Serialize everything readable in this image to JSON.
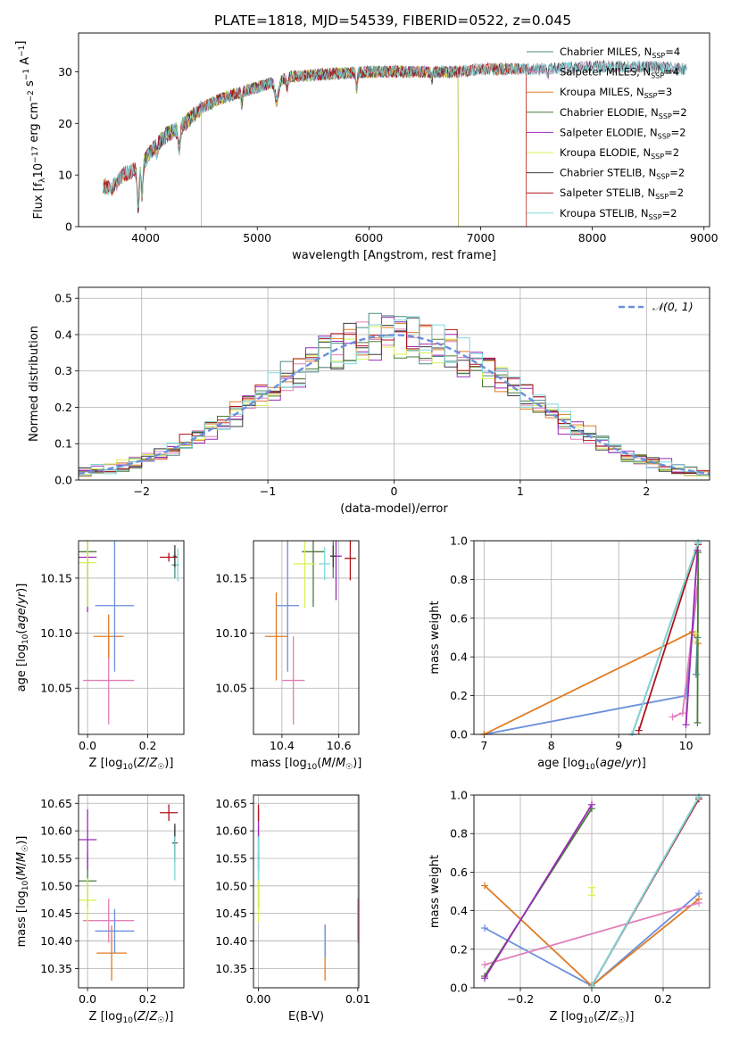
{
  "figure_title": "PLATE=1818, MJD=54539, FIBERID=0522, z=0.045",
  "colors": {
    "chabrier_miles": "#4c8c82",
    "salpeter_miles": "#e27fb8",
    "kroupa_miles": "#e07b23",
    "chabrier_elodie": "#4b7b3c",
    "salpeter_elodie": "#9b2ab8",
    "kroupa_elodie": "#d8f052",
    "chabrier_stelib": "#3c3c3c",
    "salpeter_stelib": "#b0121b",
    "kroupa_stelib": "#7fd8dc",
    "normal": "#6a8fdc",
    "extra_blue": "#6a8fdc",
    "grid": "#b0b0b0"
  },
  "chart_data": [
    {
      "id": "spectrum",
      "type": "line",
      "xlabel": "wavelength [Angstrom, rest frame]",
      "ylabel": "Flux [f_λ 10^-17 erg cm^-2 s^-1 A^-1]",
      "xlim": [
        3400,
        9050
      ],
      "ylim": [
        0,
        37.5
      ],
      "xticks": [
        4000,
        5000,
        6000,
        7000,
        8000,
        9000
      ],
      "yticks": [
        0,
        10,
        20,
        30
      ],
      "grid": false,
      "legend_position": "top-right",
      "series": [
        {
          "name": "Chabrier MILES, N_SSP=4",
          "key": "chabrier_miles"
        },
        {
          "name": "Salpeter MILES, N_SSP=4",
          "key": "salpeter_miles"
        },
        {
          "name": "Kroupa MILES, N_SSP=3",
          "key": "kroupa_miles"
        },
        {
          "name": "Chabrier ELODIE, N_SSP=2",
          "key": "chabrier_elodie"
        },
        {
          "name": "Salpeter ELODIE, N_SSP=2",
          "key": "salpeter_elodie"
        },
        {
          "name": "Kroupa ELODIE, N_SSP=2",
          "key": "kroupa_elodie"
        },
        {
          "name": "Chabrier STELIB, N_SSP=2",
          "key": "chabrier_stelib"
        },
        {
          "name": "Salpeter STELIB, N_SSP=2",
          "key": "salpeter_stelib"
        },
        {
          "name": "Kroupa STELIB, N_SSP=2",
          "key": "kroupa_stelib"
        }
      ],
      "continuum": {
        "x": [
          3600,
          3700,
          3800,
          3900,
          4000,
          4100,
          4200,
          4300,
          4400,
          4500,
          4700,
          5000,
          5300,
          5600,
          6000,
          6400,
          6800,
          7000,
          7200,
          7500,
          8000,
          8500,
          8850
        ],
        "y": [
          8,
          7.5,
          10,
          11,
          13,
          16,
          18,
          19,
          21,
          23,
          25,
          27,
          29,
          29.5,
          30,
          30,
          30,
          30.5,
          30.5,
          30.5,
          31,
          31,
          30.5
        ]
      },
      "segments": [
        {
          "key": "chabrier_miles",
          "x0": 3620,
          "x1": 8850
        },
        {
          "key": "salpeter_miles",
          "x0": 3620,
          "x1": 8850
        },
        {
          "key": "kroupa_miles",
          "x0": 3620,
          "x1": 7410
        },
        {
          "key": "chabrier_elodie",
          "x0": 3900,
          "x1": 6800
        },
        {
          "key": "salpeter_elodie",
          "x0": 3900,
          "x1": 6800
        },
        {
          "key": "kroupa_elodie",
          "x0": 3900,
          "x1": 6800
        },
        {
          "key": "chabrier_stelib",
          "x0": 3620,
          "x1": 8850
        },
        {
          "key": "salpeter_stelib",
          "x0": 3620,
          "x1": 7410
        },
        {
          "key": "kroupa_stelib",
          "x0": 3620,
          "x1": 8850
        }
      ]
    },
    {
      "id": "residual_hist",
      "type": "histogram",
      "xlabel": "(data-model)/error",
      "ylabel": "Normed distribution",
      "xlim": [
        -2.5,
        2.5
      ],
      "ylim": [
        0,
        0.53
      ],
      "xticks": [
        -2,
        -1,
        0,
        1,
        2
      ],
      "yticks": [
        0.0,
        0.1,
        0.2,
        0.3,
        0.4,
        0.5
      ],
      "grid": true,
      "legend_position": "top-right",
      "legend_label": "𝒩(0, 1)",
      "bin_width": 0.1,
      "bin_start": -2.5
    },
    {
      "id": "age_vs_Z",
      "type": "errorbar",
      "xlabel": "Z [log10(Z/Z☉)]",
      "ylabel": "age [log10(age/yr)]",
      "xlim": [
        -0.03,
        0.32
      ],
      "ylim": [
        10.008,
        10.184
      ],
      "xticks": [
        0.0,
        0.2
      ],
      "yticks": [
        10.05,
        10.1,
        10.15
      ],
      "grid": true,
      "points": [
        {
          "key": "chabrier_miles",
          "x": 0.29,
          "y": 10.162,
          "xerr": 0.01,
          "yerr": 0.012
        },
        {
          "key": "salpeter_miles",
          "x": 0.07,
          "y": 10.057,
          "xerr": 0.085,
          "yerr": 0.04
        },
        {
          "key": "kroupa_miles",
          "x": 0.07,
          "y": 10.097,
          "xerr": 0.05,
          "yerr": 0.02
        },
        {
          "key": "chabrier_elodie",
          "x": 0.0,
          "y": 10.174,
          "xerr": 0.03,
          "yerr": 0.05
        },
        {
          "key": "salpeter_elodie",
          "x": 0.0,
          "y": 10.169,
          "xerr": 0.03,
          "yerr": 0.05
        },
        {
          "key": "kroupa_elodie",
          "x": 0.0,
          "y": 10.164,
          "xerr": 0.03,
          "yerr": 0.04
        },
        {
          "key": "chabrier_stelib",
          "x": 0.29,
          "y": 10.17,
          "xerr": 0.005,
          "yerr": 0.01
        },
        {
          "key": "salpeter_stelib",
          "x": 0.27,
          "y": 10.169,
          "xerr": 0.03,
          "yerr": 0.004
        },
        {
          "key": "kroupa_stelib",
          "x": 0.3,
          "y": 10.162,
          "xerr": 0.005,
          "yerr": 0.015
        },
        {
          "key": "extra_blue",
          "x": 0.09,
          "y": 10.125,
          "xerr": 0.065,
          "yerr": 0.06
        }
      ]
    },
    {
      "id": "age_vs_mass",
      "type": "errorbar",
      "xlabel": "mass [log10(M/M☉)]",
      "ylabel": "",
      "xlim": [
        10.3,
        10.67
      ],
      "ylim": [
        10.008,
        10.184
      ],
      "xticks": [
        10.4,
        10.6
      ],
      "yticks": [
        10.05,
        10.1,
        10.15
      ],
      "grid": true,
      "points": [
        {
          "key": "chabrier_miles",
          "x": 10.58,
          "y": 10.17,
          "xerr": 0.01,
          "yerr": 0.02
        },
        {
          "key": "salpeter_miles",
          "x": 10.44,
          "y": 10.057,
          "xerr": 0.04,
          "yerr": 0.04
        },
        {
          "key": "kroupa_miles",
          "x": 10.38,
          "y": 10.097,
          "xerr": 0.04,
          "yerr": 0.04
        },
        {
          "key": "chabrier_elodie",
          "x": 10.51,
          "y": 10.174,
          "xerr": 0.04,
          "yerr": 0.05
        },
        {
          "key": "salpeter_elodie",
          "x": 10.59,
          "y": 10.17,
          "xerr": 0.02,
          "yerr": 0.04
        },
        {
          "key": "kroupa_elodie",
          "x": 10.48,
          "y": 10.163,
          "xerr": 0.04,
          "yerr": 0.04
        },
        {
          "key": "chabrier_stelib",
          "x": 10.58,
          "y": 10.17,
          "xerr": 0.01,
          "yerr": 0.01
        },
        {
          "key": "salpeter_stelib",
          "x": 10.64,
          "y": 10.168,
          "xerr": 0.02,
          "yerr": 0.02
        },
        {
          "key": "kroupa_stelib",
          "x": 10.55,
          "y": 10.163,
          "xerr": 0.02,
          "yerr": 0.015
        },
        {
          "key": "extra_blue",
          "x": 10.42,
          "y": 10.125,
          "xerr": 0.04,
          "yerr": 0.06
        }
      ]
    },
    {
      "id": "weight_vs_age",
      "type": "line",
      "xlabel": "age [log10(age/yr)]",
      "ylabel": "mass weight",
      "xlim": [
        6.85,
        10.35
      ],
      "ylim": [
        0,
        1
      ],
      "xticks": [
        7,
        8,
        9,
        10
      ],
      "yticks": [
        0.0,
        0.2,
        0.4,
        0.6,
        0.8,
        1.0
      ],
      "grid": true,
      "series": [
        {
          "key": "extra_blue",
          "x": [
            7.0,
            10.0,
            10.18
          ],
          "y": [
            0.0,
            0.2,
            0.8
          ]
        },
        {
          "key": "kroupa_miles",
          "x": [
            7.0,
            10.1,
            10.18
          ],
          "y": [
            0.0,
            0.53,
            0.47
          ]
        },
        {
          "key": "salpeter_miles",
          "x": [
            9.8,
            9.95,
            10.18
          ],
          "y": [
            0.09,
            0.11,
            0.8
          ]
        },
        {
          "key": "salpeter_stelib",
          "x": [
            9.3,
            10.18
          ],
          "y": [
            0.02,
            0.98
          ]
        },
        {
          "key": "chabrier_stelib",
          "x": [
            9.2,
            10.18
          ],
          "y": [
            0.0,
            0.99
          ]
        },
        {
          "key": "kroupa_stelib",
          "x": [
            9.2,
            10.18
          ],
          "y": [
            0.0,
            0.99
          ]
        },
        {
          "key": "chabrier_elodie",
          "x": [
            10.17,
            10.18
          ],
          "y": [
            0.06,
            0.94
          ]
        },
        {
          "key": "salpeter_elodie",
          "x": [
            10.0,
            10.17
          ],
          "y": [
            0.05,
            0.95
          ]
        },
        {
          "key": "kroupa_elodie",
          "x": [
            10.15,
            10.15
          ],
          "y": [
            0.48,
            0.52
          ]
        },
        {
          "key": "chabrier_miles",
          "x": [
            10.15,
            10.17
          ],
          "y": [
            0.31,
            0.5
          ]
        }
      ]
    },
    {
      "id": "mass_vs_Z",
      "type": "errorbar",
      "xlabel": "Z [log10(Z/Z☉)]",
      "ylabel": "mass [log10(M/M☉)]",
      "xlim": [
        -0.03,
        0.32
      ],
      "ylim": [
        10.315,
        10.665
      ],
      "xticks": [
        0.0,
        0.2
      ],
      "yticks": [
        10.35,
        10.4,
        10.45,
        10.5,
        10.55,
        10.6,
        10.65
      ],
      "grid": true,
      "points": [
        {
          "key": "chabrier_miles",
          "x": 0.29,
          "y": 10.578,
          "xerr": 0.01,
          "yerr": 0.03
        },
        {
          "key": "salpeter_miles",
          "x": 0.07,
          "y": 10.437,
          "xerr": 0.085,
          "yerr": 0.04
        },
        {
          "key": "kroupa_miles",
          "x": 0.08,
          "y": 10.378,
          "xerr": 0.05,
          "yerr": 0.05
        },
        {
          "key": "chabrier_elodie",
          "x": 0.0,
          "y": 10.509,
          "xerr": 0.03,
          "yerr": 0.05
        },
        {
          "key": "salpeter_elodie",
          "x": 0.0,
          "y": 10.584,
          "xerr": 0.03,
          "yerr": 0.055
        },
        {
          "key": "kroupa_elodie",
          "x": 0.0,
          "y": 10.474,
          "xerr": 0.03,
          "yerr": 0.04
        },
        {
          "key": "chabrier_stelib",
          "x": 0.29,
          "y": 10.578,
          "xerr": 0.005,
          "yerr": 0.035
        },
        {
          "key": "salpeter_stelib",
          "x": 0.27,
          "y": 10.633,
          "xerr": 0.03,
          "yerr": 0.015
        },
        {
          "key": "kroupa_stelib",
          "x": 0.29,
          "y": 10.55,
          "xerr": 0.005,
          "yerr": 0.04
        },
        {
          "key": "extra_blue",
          "x": 0.09,
          "y": 10.418,
          "xerr": 0.065,
          "yerr": 0.04
        }
      ]
    },
    {
      "id": "mass_vs_ebv",
      "type": "errorbar",
      "xlabel": "E(B-V)",
      "ylabel": "",
      "xlim": [
        -0.0005,
        0.0101
      ],
      "ylim": [
        10.315,
        10.665
      ],
      "xticks": [
        0.0,
        0.01
      ],
      "xticklabels": [
        "0.00",
        "0.01"
      ],
      "yticks": [
        10.35,
        10.4,
        10.45,
        10.5,
        10.55,
        10.6,
        10.65
      ],
      "grid": true,
      "points": [
        {
          "key": "chabrier_miles",
          "x": 0.0,
          "y": 10.578,
          "xerr": 0,
          "yerr": 0.03
        },
        {
          "key": "salpeter_miles",
          "x": 0.01,
          "y": 10.437,
          "xerr": 0,
          "yerr": 0.04
        },
        {
          "key": "kroupa_miles",
          "x": 0.0067,
          "y": 10.378,
          "xerr": 0,
          "yerr": 0.05
        },
        {
          "key": "chabrier_elodie",
          "x": 0.0,
          "y": 10.509,
          "xerr": 0,
          "yerr": 0.05
        },
        {
          "key": "salpeter_elodie",
          "x": 0.0,
          "y": 10.584,
          "xerr": 0,
          "yerr": 0.055
        },
        {
          "key": "kroupa_elodie",
          "x": 0.0,
          "y": 10.474,
          "xerr": 0,
          "yerr": 0.04
        },
        {
          "key": "salpeter_stelib",
          "x": 0.0,
          "y": 10.633,
          "xerr": 0,
          "yerr": 0.015
        },
        {
          "key": "kroupa_stelib",
          "x": 0.0,
          "y": 10.55,
          "xerr": 0,
          "yerr": 0.04
        },
        {
          "key": "extra_blue",
          "x": 0.0067,
          "y": 10.4,
          "xerr": 0,
          "yerr": 0.03
        }
      ]
    },
    {
      "id": "weight_vs_Z",
      "type": "line",
      "xlabel": "Z [log10(Z/Z☉)]",
      "ylabel": "mass weight",
      "xlim": [
        -0.33,
        0.33
      ],
      "ylim": [
        0,
        1
      ],
      "xticks": [
        -0.2,
        0.0,
        0.2
      ],
      "yticks": [
        0.0,
        0.2,
        0.4,
        0.6,
        0.8,
        1.0
      ],
      "grid": true,
      "series": [
        {
          "key": "extra_blue",
          "x": [
            -0.3,
            0.0,
            0.3
          ],
          "y": [
            0.31,
            0.01,
            0.49
          ]
        },
        {
          "key": "kroupa_miles",
          "x": [
            -0.3,
            0.0,
            0.3
          ],
          "y": [
            0.53,
            0.01,
            0.46
          ]
        },
        {
          "key": "salpeter_miles",
          "x": [
            -0.3,
            0.3
          ],
          "y": [
            0.12,
            0.44
          ]
        },
        {
          "key": "salpeter_stelib",
          "x": [
            0.0,
            0.3
          ],
          "y": [
            0.01,
            0.98
          ]
        },
        {
          "key": "chabrier_stelib",
          "x": [
            0.0,
            0.3
          ],
          "y": [
            0.01,
            0.99
          ]
        },
        {
          "key": "kroupa_stelib",
          "x": [
            0.0,
            0.3
          ],
          "y": [
            0.01,
            0.99
          ]
        },
        {
          "key": "chabrier_elodie",
          "x": [
            -0.3,
            0.0
          ],
          "y": [
            0.06,
            0.93
          ]
        },
        {
          "key": "salpeter_elodie",
          "x": [
            -0.3,
            0.0
          ],
          "y": [
            0.05,
            0.95
          ]
        },
        {
          "key": "kroupa_elodie",
          "x": [
            0.0,
            0.0
          ],
          "y": [
            0.48,
            0.52
          ]
        }
      ]
    }
  ]
}
